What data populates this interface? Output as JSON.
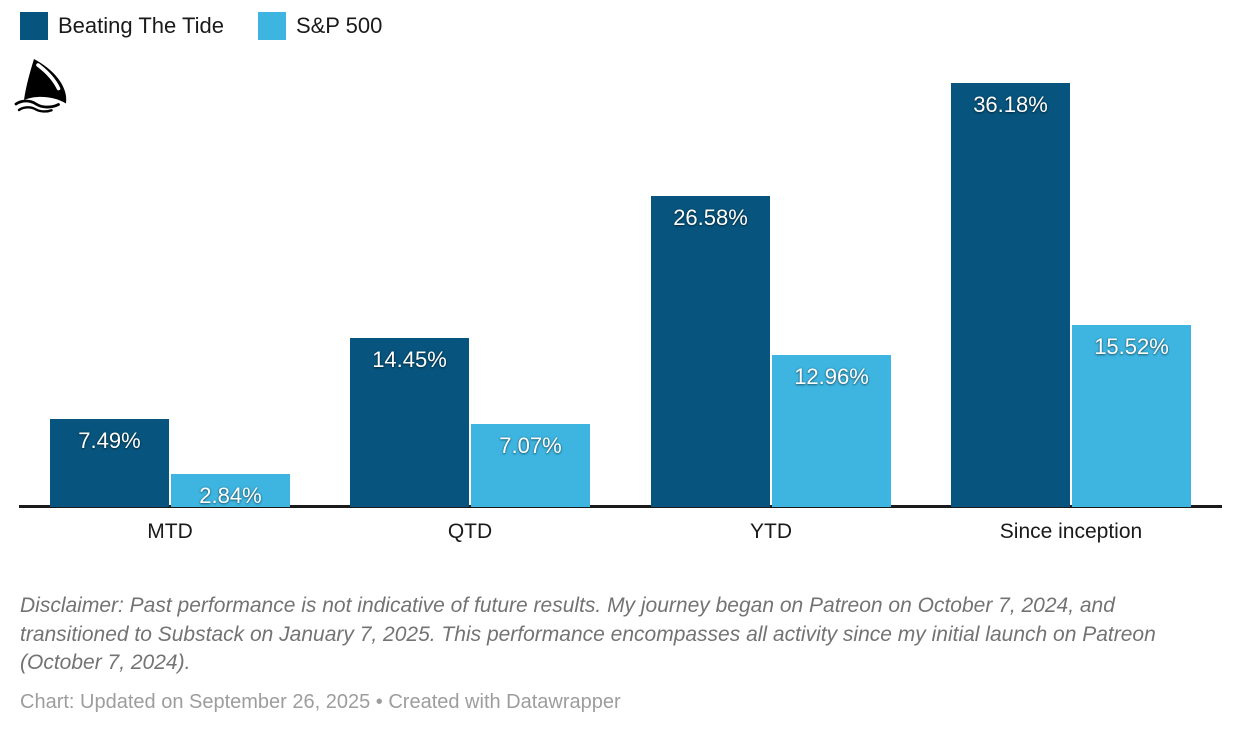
{
  "legend": {
    "items": [
      {
        "label": "Beating The Tide",
        "color": "#07557e"
      },
      {
        "label": "S&P 500",
        "color": "#3db5e0"
      }
    ]
  },
  "logo": {
    "name": "shark-fin-logo"
  },
  "chart_data": {
    "type": "bar",
    "title": "",
    "categories": [
      "MTD",
      "QTD",
      "YTD",
      "Since inception"
    ],
    "series": [
      {
        "name": "Beating The Tide",
        "color": "#07557e",
        "values": [
          7.49,
          14.45,
          26.58,
          36.18
        ],
        "labels": [
          "7.49%",
          "14.45%",
          "26.58%",
          "36.18%"
        ]
      },
      {
        "name": "S&P 500",
        "color": "#3db5e0",
        "values": [
          2.84,
          7.07,
          12.96,
          15.52
        ],
        "labels": [
          "2.84%",
          "7.07%",
          "12.96%",
          "15.52%"
        ]
      }
    ],
    "xlabel": "",
    "ylabel": "",
    "ylim": [
      0,
      36.18
    ],
    "grid": false,
    "axis_line_color": "#1a1a1a",
    "value_label_position": "inside-top",
    "value_label_color": "#ffffff",
    "legend_position": "top-left"
  },
  "footer": {
    "disclaimer": "Disclaimer: Past performance is not indicative of future results. My journey began on Patreon on October 7, 2024, and transitioned to Substack on January 7, 2025. This performance encompasses all activity since my initial launch on Patreon (October 7, 2024).",
    "credit": "Chart: Updated on September 26, 2025 • Created with Datawrapper"
  }
}
